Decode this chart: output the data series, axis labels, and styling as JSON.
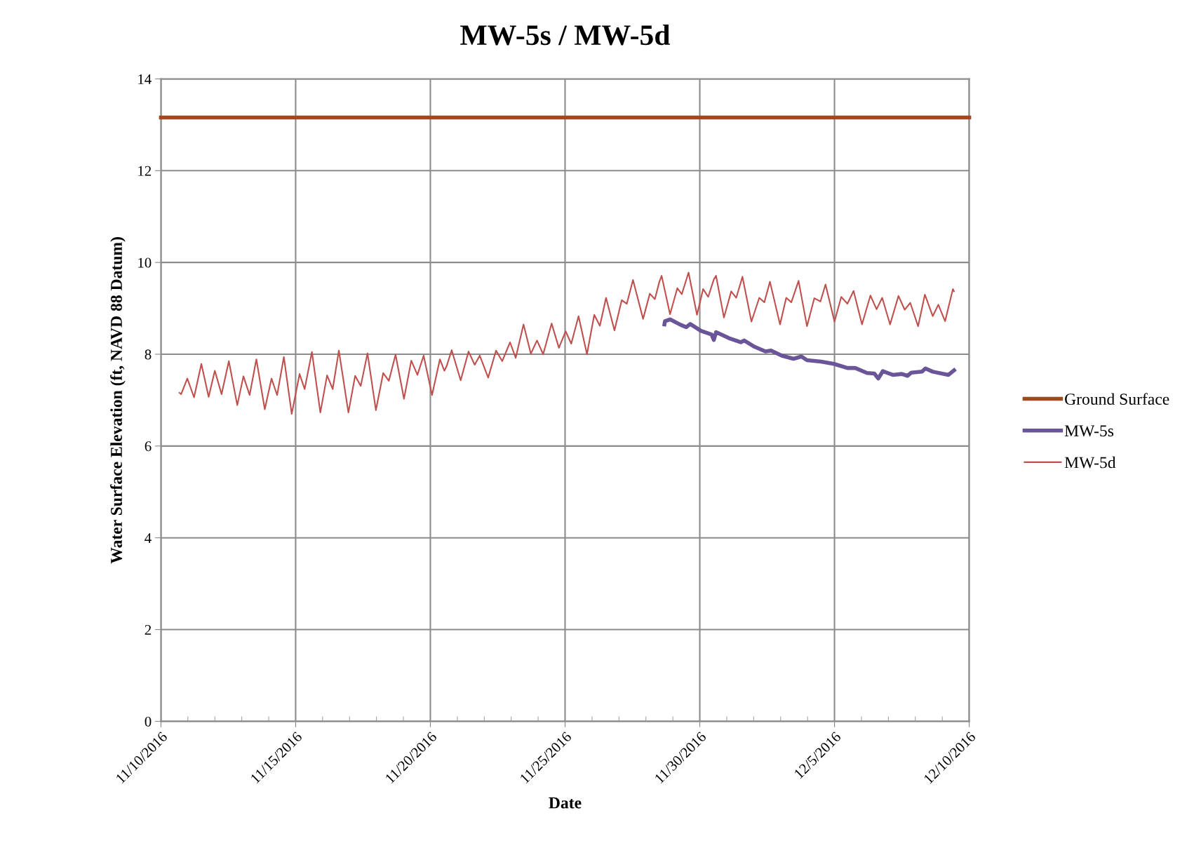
{
  "chart_data": {
    "type": "line",
    "title": "MW-5s / MW-5d",
    "xlabel": "Date",
    "ylabel": "Water Surface Elevation (ft, NAVD 88 Datum)",
    "xlim": [
      "2016-11-10",
      "2016-12-10"
    ],
    "xticks": [
      {
        "value": "2016-11-10",
        "label": "11/10/2016"
      },
      {
        "value": "2016-11-15",
        "label": "11/15/2016"
      },
      {
        "value": "2016-11-20",
        "label": "11/20/2016"
      },
      {
        "value": "2016-11-25",
        "label": "11/25/2016"
      },
      {
        "value": "2016-11-30",
        "label": "11/30/2016"
      },
      {
        "value": "2016-12-05",
        "label": "12/5/2016"
      },
      {
        "value": "2016-12-10",
        "label": "12/10/2016"
      }
    ],
    "ylim": [
      0,
      14
    ],
    "yticks": [
      0,
      2,
      4,
      6,
      8,
      10,
      12,
      14
    ],
    "grid": true,
    "legend": "right",
    "marker": "none",
    "line_style": "solid",
    "series": [
      {
        "name": "Ground Surface",
        "color": "#9e4a1e",
        "x": [
          "2016-11-10",
          "2016-12-10"
        ],
        "values": [
          13.16,
          13.16
        ]
      },
      {
        "name": "MW-5s",
        "color": "#6a5599",
        "x": [
          "2016-11-28T16:30",
          "2016-11-28T17:00",
          "2016-11-28T21:30",
          "2016-11-29T07:00",
          "2016-11-29T12:00",
          "2016-11-29T15:30",
          "2016-11-30T01:00",
          "2016-11-30T10:30",
          "2016-11-30T12:30",
          "2016-11-30T14:30",
          "2016-12-01T02:00",
          "2016-12-01T12:30",
          "2016-12-01T15:30",
          "2016-12-02T01:00",
          "2016-12-02T10:30",
          "2016-12-02T15:30",
          "2016-12-03T01:00",
          "2016-12-03T11:30",
          "2016-12-03T18:30",
          "2016-12-03T23:30",
          "2016-12-04T12:00",
          "2016-12-04T23:30",
          "2016-12-05T11:30",
          "2016-12-05T18:30",
          "2016-12-06T05:00",
          "2016-12-06T11:30",
          "2016-12-06T15:00",
          "2016-12-06T19:00",
          "2016-12-07T04:00",
          "2016-12-07T12:00",
          "2016-12-07T17:00",
          "2016-12-07T20:30",
          "2016-12-08T06:00",
          "2016-12-08T09:00",
          "2016-12-08T15:30",
          "2016-12-09T05:30",
          "2016-12-09T10:30"
        ],
        "values": [
          8.65,
          8.72,
          8.76,
          8.64,
          8.59,
          8.66,
          8.51,
          8.43,
          8.31,
          8.48,
          8.35,
          8.26,
          8.3,
          8.16,
          8.06,
          8.08,
          7.97,
          7.9,
          7.95,
          7.87,
          7.84,
          7.79,
          7.7,
          7.7,
          7.59,
          7.58,
          7.47,
          7.63,
          7.55,
          7.57,
          7.53,
          7.6,
          7.62,
          7.69,
          7.62,
          7.55,
          7.65
        ]
      },
      {
        "name": "MW-5d",
        "color": "#c0504d",
        "x": [
          "2016-11-10T16:30",
          "2016-11-10T18:00",
          "2016-11-10T23:30",
          "2016-11-11T05:30",
          "2016-11-11T12:00",
          "2016-11-11T18:30",
          "2016-11-12T00:00",
          "2016-11-12T06:00",
          "2016-11-12T12:30",
          "2016-11-12T20:00",
          "2016-11-13T01:30",
          "2016-11-13T07:00",
          "2016-11-13T13:00",
          "2016-11-13T20:30",
          "2016-11-14T02:30",
          "2016-11-14T07:30",
          "2016-11-14T13:30",
          "2016-11-14T20:30",
          "2016-11-15T03:30",
          "2016-11-15T08:00",
          "2016-11-15T14:30",
          "2016-11-15T22:00",
          "2016-11-16T04:00",
          "2016-11-16T09:00",
          "2016-11-16T14:30",
          "2016-11-16T23:00",
          "2016-11-17T05:00",
          "2016-11-17T10:00",
          "2016-11-17T16:00",
          "2016-11-17T23:30",
          "2016-11-18T06:00",
          "2016-11-18T11:00",
          "2016-11-18T17:00",
          "2016-11-19T00:30",
          "2016-11-19T07:00",
          "2016-11-19T12:30",
          "2016-11-19T18:00",
          "2016-11-20T01:30",
          "2016-11-20T08:30",
          "2016-11-20T12:30",
          "2016-11-20T14:30",
          "2016-11-20T19:00",
          "2016-11-21T03:00",
          "2016-11-21T10:00",
          "2016-11-21T15:30",
          "2016-11-21T20:00",
          "2016-11-22T03:30",
          "2016-11-22T10:30",
          "2016-11-22T16:00",
          "2016-11-22T23:00",
          "2016-11-23T04:00",
          "2016-11-23T11:00",
          "2016-11-23T17:30",
          "2016-11-23T23:00",
          "2016-11-24T04:30",
          "2016-11-24T12:00",
          "2016-11-24T18:30",
          "2016-11-25T00:30",
          "2016-11-25T05:30",
          "2016-11-25T12:00",
          "2016-11-25T19:30",
          "2016-11-26T02:00",
          "2016-11-26T07:00",
          "2016-11-26T12:30",
          "2016-11-26T20:00",
          "2016-11-27T02:30",
          "2016-11-27T07:00",
          "2016-11-27T12:30",
          "2016-11-27T21:30",
          "2016-11-28T03:30",
          "2016-11-28T08:00",
          "2016-11-28T12:00",
          "2016-11-28T14:00",
          "2016-11-28T21:30",
          "2016-11-29T04:00",
          "2016-11-29T08:00",
          "2016-11-29T14:00",
          "2016-11-29T21:30",
          "2016-11-30T03:00",
          "2016-11-30T07:30",
          "2016-11-30T12:30",
          "2016-11-30T14:30",
          "2016-11-30T21:30",
          "2016-12-01T04:00",
          "2016-12-01T08:30",
          "2016-12-01T14:00",
          "2016-12-01T22:00",
          "2016-12-02T05:00",
          "2016-12-02T09:30",
          "2016-12-02T14:30",
          "2016-12-02T23:30",
          "2016-12-03T05:00",
          "2016-12-03T09:30",
          "2016-12-03T16:00",
          "2016-12-03T23:30",
          "2016-12-04T06:00",
          "2016-12-04T11:30",
          "2016-12-04T16:00",
          "2016-12-05T00:00",
          "2016-12-05T06:00",
          "2016-12-05T11:30",
          "2016-12-05T17:00",
          "2016-12-06T00:30",
          "2016-12-06T08:00",
          "2016-12-06T13:30",
          "2016-12-06T18:30",
          "2016-12-07T01:30",
          "2016-12-07T09:00",
          "2016-12-07T14:30",
          "2016-12-07T19:30",
          "2016-12-08T02:30",
          "2016-12-08T08:30",
          "2016-12-08T15:30",
          "2016-12-08T20:30",
          "2016-12-09T02:30",
          "2016-12-09T09:30",
          "2016-12-09T10:30"
        ],
        "values": [
          7.16,
          7.13,
          7.47,
          7.06,
          7.79,
          7.07,
          7.64,
          7.13,
          7.85,
          6.89,
          7.52,
          7.11,
          7.89,
          6.8,
          7.47,
          7.11,
          7.94,
          6.7,
          7.57,
          7.24,
          8.05,
          6.73,
          7.54,
          7.24,
          8.08,
          6.73,
          7.53,
          7.31,
          8.02,
          6.78,
          7.59,
          7.42,
          7.99,
          7.03,
          7.86,
          7.55,
          7.97,
          7.11,
          7.89,
          7.64,
          7.74,
          8.09,
          7.43,
          8.06,
          7.77,
          7.97,
          7.49,
          8.08,
          7.85,
          8.26,
          7.92,
          8.65,
          8.01,
          8.3,
          8.0,
          8.67,
          8.14,
          8.5,
          8.23,
          8.83,
          8.0,
          8.86,
          8.62,
          9.23,
          8.52,
          9.18,
          9.1,
          9.62,
          8.77,
          9.32,
          9.2,
          9.58,
          9.71,
          8.87,
          9.44,
          9.31,
          9.78,
          8.86,
          9.42,
          9.25,
          9.63,
          9.71,
          8.8,
          9.37,
          9.23,
          9.69,
          8.71,
          9.23,
          9.13,
          9.58,
          8.65,
          9.23,
          9.13,
          9.6,
          8.61,
          9.22,
          9.15,
          9.52,
          8.71,
          9.25,
          9.1,
          9.38,
          8.65,
          9.28,
          8.98,
          9.23,
          8.65,
          9.27,
          8.97,
          9.12,
          8.61,
          9.3,
          8.83,
          9.08,
          8.72,
          9.42,
          9.37
        ]
      }
    ]
  }
}
